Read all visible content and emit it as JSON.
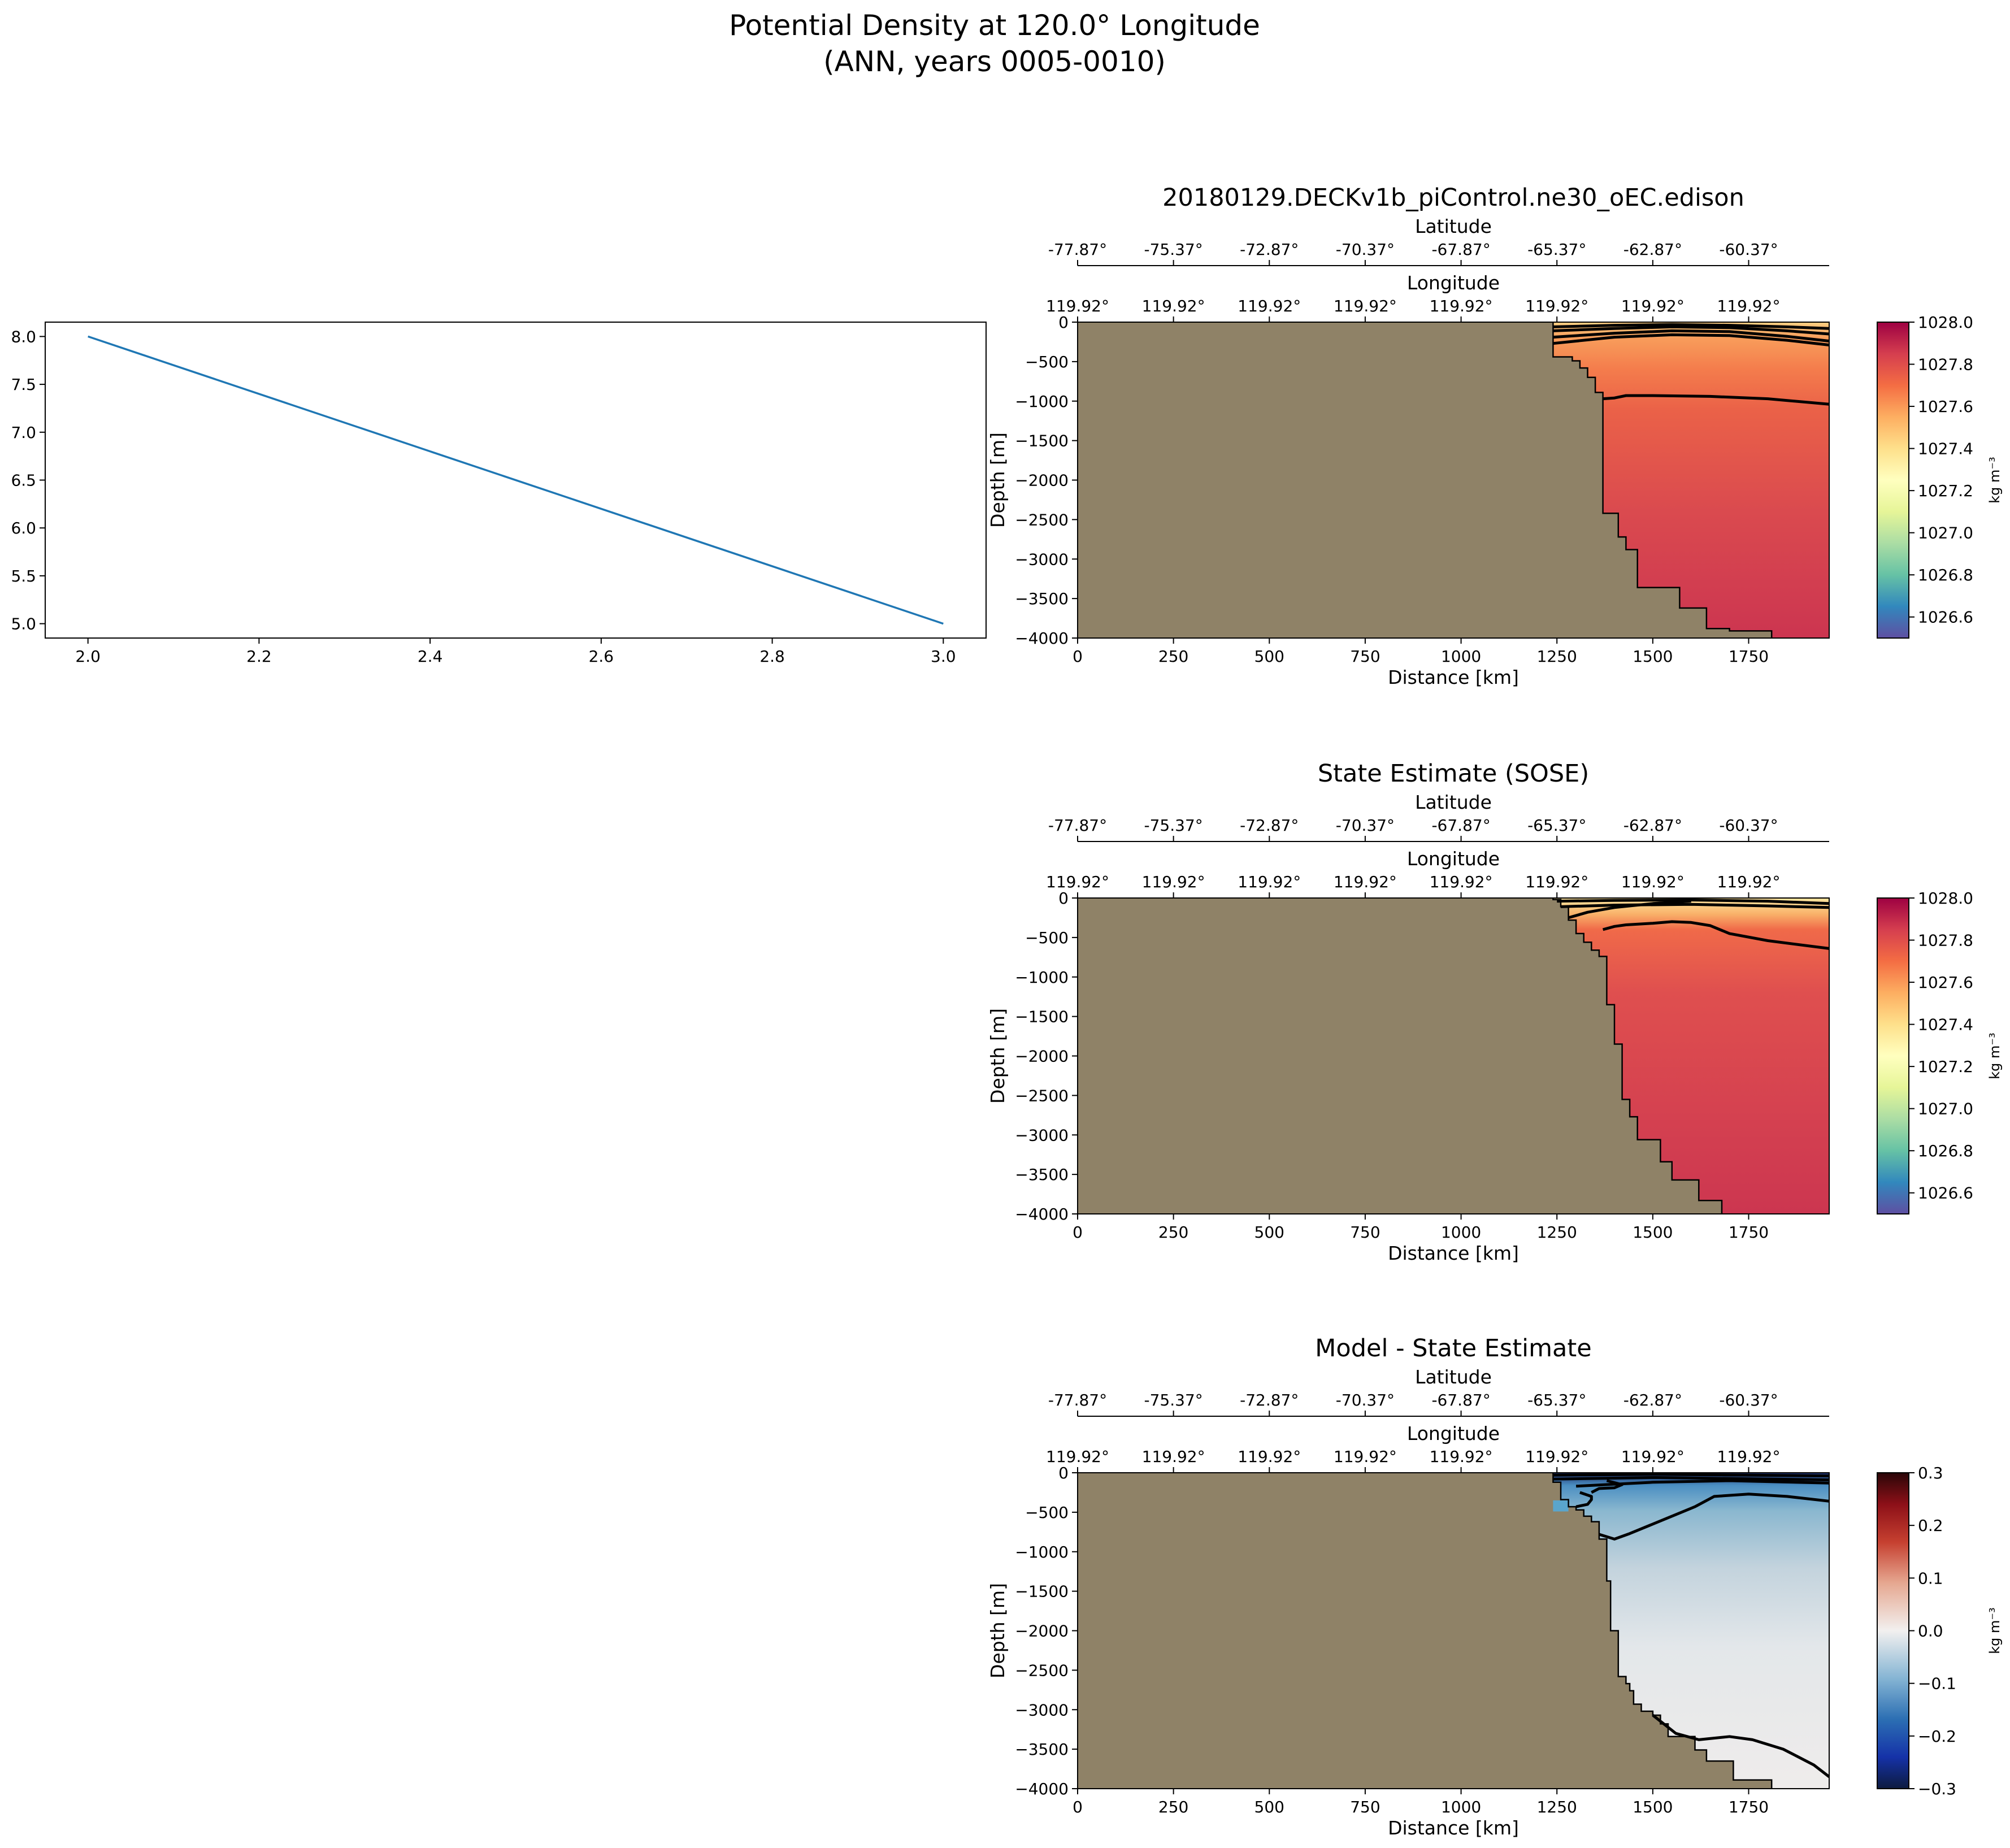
{
  "figure": {
    "title_line1": "Potential Density at 120.0° Longitude",
    "title_line2": "(ANN, years 0005-0010)"
  },
  "chart_data": [
    {
      "id": "line",
      "type": "line",
      "title": "",
      "xlabel": "",
      "ylabel": "",
      "xlim": [
        1.95,
        3.05
      ],
      "ylim": [
        4.85,
        8.15
      ],
      "xticks": [
        2.0,
        2.2,
        2.4,
        2.6,
        2.8,
        3.0
      ],
      "xtick_labels": [
        "2.0",
        "2.2",
        "2.4",
        "2.6",
        "2.8",
        "3.0"
      ],
      "yticks": [
        5.0,
        5.5,
        6.0,
        6.5,
        7.0,
        7.5,
        8.0
      ],
      "ytick_labels": [
        "5.0",
        "5.5",
        "6.0",
        "6.5",
        "7.0",
        "7.5",
        "8.0"
      ],
      "series": [
        {
          "x": [
            2.0,
            3.0
          ],
          "y": [
            8.0,
            5.0
          ],
          "color": "#1f77b4"
        }
      ],
      "grid": false
    },
    {
      "id": "model",
      "type": "heatmap",
      "title": "20180129.DECKv1b_piControl.ne30_oEC.edison",
      "xlabel": "Distance [km]",
      "ylabel": "Depth [m]",
      "top_axis1_label": "Longitude",
      "top_axis2_label": "Latitude",
      "xlim": [
        0,
        1960
      ],
      "ylim": [
        -4000,
        0
      ],
      "xticks": [
        0,
        250,
        500,
        750,
        1000,
        1250,
        1500,
        1750
      ],
      "xtick_labels": [
        "0",
        "250",
        "500",
        "750",
        "1000",
        "1250",
        "1500",
        "1750"
      ],
      "yticks": [
        0,
        -500,
        -1000,
        -1500,
        -2000,
        -2500,
        -3000,
        -3500,
        -4000
      ],
      "ytick_labels": [
        "0",
        "−500",
        "−1000",
        "−1500",
        "−2000",
        "−2500",
        "−3000",
        "−3500",
        "−4000"
      ],
      "lon_tick_labels": [
        "119.92°",
        "119.92°",
        "119.92°",
        "119.92°",
        "119.92°",
        "119.92°",
        "119.92°",
        "119.92°"
      ],
      "lat_tick_labels": [
        "-77.87°",
        "-75.37°",
        "-72.87°",
        "-70.37°",
        "-67.87°",
        "-65.37°",
        "-62.87°",
        "-60.37°"
      ],
      "colorbar": {
        "label": "kg m⁻³",
        "range": [
          1026.5,
          1028.0
        ],
        "ticks": [
          1026.6,
          1026.8,
          1027.0,
          1027.2,
          1027.4,
          1027.6,
          1027.8,
          1028.0
        ],
        "tick_labels": [
          "1026.6",
          "1026.8",
          "1027.0",
          "1027.2",
          "1027.4",
          "1027.6",
          "1027.8",
          "1028.0"
        ],
        "colormap": "Spectral_r"
      },
      "land_color": "#8f8267",
      "bathymetry": [
        [
          1240,
          -440
        ],
        [
          1290,
          -440
        ],
        [
          1290,
          -490
        ],
        [
          1310,
          -490
        ],
        [
          1310,
          -580
        ],
        [
          1330,
          -580
        ],
        [
          1330,
          -700
        ],
        [
          1350,
          -700
        ],
        [
          1350,
          -890
        ],
        [
          1370,
          -890
        ],
        [
          1370,
          -2420
        ],
        [
          1410,
          -2420
        ],
        [
          1410,
          -2720
        ],
        [
          1430,
          -2720
        ],
        [
          1430,
          -2880
        ],
        [
          1460,
          -2880
        ],
        [
          1460,
          -3360
        ],
        [
          1570,
          -3360
        ],
        [
          1570,
          -3620
        ],
        [
          1640,
          -3620
        ],
        [
          1640,
          -3880
        ],
        [
          1700,
          -3880
        ],
        [
          1700,
          -3910
        ],
        [
          1810,
          -3910
        ],
        [
          1810,
          -4000
        ]
      ],
      "shelf_top": [
        [
          1240,
          -440
        ],
        [
          1240,
          -80
        ]
      ],
      "density_field": {
        "surface_min": 1027.3,
        "mid": 1027.7,
        "bottom": 1027.88
      },
      "contours": [
        [
          [
            1240,
            -60
          ],
          [
            1400,
            -40
          ],
          [
            1550,
            -30
          ],
          [
            1700,
            -40
          ],
          [
            1850,
            -60
          ],
          [
            1960,
            -80
          ]
        ],
        [
          [
            1240,
            -110
          ],
          [
            1400,
            -80
          ],
          [
            1550,
            -60
          ],
          [
            1700,
            -70
          ],
          [
            1850,
            -110
          ],
          [
            1960,
            -150
          ]
        ],
        [
          [
            1240,
            -190
          ],
          [
            1400,
            -140
          ],
          [
            1550,
            -110
          ],
          [
            1700,
            -120
          ],
          [
            1850,
            -180
          ],
          [
            1960,
            -240
          ]
        ],
        [
          [
            1240,
            -270
          ],
          [
            1400,
            -190
          ],
          [
            1550,
            -160
          ],
          [
            1700,
            -170
          ],
          [
            1850,
            -230
          ],
          [
            1960,
            -290
          ]
        ],
        [
          [
            1370,
            -970
          ],
          [
            1400,
            -960
          ],
          [
            1430,
            -930
          ],
          [
            1500,
            -930
          ],
          [
            1650,
            -940
          ],
          [
            1800,
            -970
          ],
          [
            1960,
            -1040
          ]
        ]
      ]
    },
    {
      "id": "sose",
      "type": "heatmap",
      "title": "State Estimate (SOSE)",
      "xlabel": "Distance [km]",
      "ylabel": "Depth [m]",
      "top_axis1_label": "Longitude",
      "top_axis2_label": "Latitude",
      "xlim": [
        0,
        1960
      ],
      "ylim": [
        -4000,
        0
      ],
      "xticks": [
        0,
        250,
        500,
        750,
        1000,
        1250,
        1500,
        1750
      ],
      "xtick_labels": [
        "0",
        "250",
        "500",
        "750",
        "1000",
        "1250",
        "1500",
        "1750"
      ],
      "yticks": [
        0,
        -500,
        -1000,
        -1500,
        -2000,
        -2500,
        -3000,
        -3500,
        -4000
      ],
      "ytick_labels": [
        "0",
        "−500",
        "−1000",
        "−1500",
        "−2000",
        "−2500",
        "−3000",
        "−3500",
        "−4000"
      ],
      "lon_tick_labels": [
        "119.92°",
        "119.92°",
        "119.92°",
        "119.92°",
        "119.92°",
        "119.92°",
        "119.92°",
        "119.92°"
      ],
      "lat_tick_labels": [
        "-77.87°",
        "-75.37°",
        "-72.87°",
        "-70.37°",
        "-67.87°",
        "-65.37°",
        "-62.87°",
        "-60.37°"
      ],
      "colorbar": {
        "label": "kg m⁻³",
        "range": [
          1026.5,
          1028.0
        ],
        "ticks": [
          1026.6,
          1026.8,
          1027.0,
          1027.2,
          1027.4,
          1027.6,
          1027.8,
          1028.0
        ],
        "tick_labels": [
          "1026.6",
          "1026.8",
          "1027.0",
          "1027.2",
          "1027.4",
          "1027.6",
          "1027.8",
          "1028.0"
        ],
        "colormap": "Spectral_r"
      },
      "land_color": "#8f8267",
      "bathymetry": [
        [
          1240,
          -20
        ],
        [
          1260,
          -20
        ],
        [
          1260,
          -110
        ],
        [
          1280,
          -110
        ],
        [
          1280,
          -280
        ],
        [
          1300,
          -280
        ],
        [
          1300,
          -450
        ],
        [
          1320,
          -450
        ],
        [
          1320,
          -560
        ],
        [
          1340,
          -560
        ],
        [
          1340,
          -660
        ],
        [
          1360,
          -660
        ],
        [
          1360,
          -740
        ],
        [
          1380,
          -740
        ],
        [
          1380,
          -1350
        ],
        [
          1400,
          -1350
        ],
        [
          1400,
          -1850
        ],
        [
          1420,
          -1850
        ],
        [
          1420,
          -2550
        ],
        [
          1440,
          -2550
        ],
        [
          1440,
          -2770
        ],
        [
          1460,
          -2770
        ],
        [
          1460,
          -3060
        ],
        [
          1520,
          -3060
        ],
        [
          1520,
          -3340
        ],
        [
          1550,
          -3340
        ],
        [
          1550,
          -3570
        ],
        [
          1620,
          -3570
        ],
        [
          1620,
          -3830
        ],
        [
          1680,
          -3830
        ],
        [
          1680,
          -4000
        ]
      ],
      "density_field": {
        "surface_min": 1027.15,
        "mid": 1027.75,
        "bottom": 1027.87
      },
      "contours": [
        [
          [
            1250,
            -40
          ],
          [
            1400,
            -30
          ],
          [
            1600,
            -25
          ],
          [
            1800,
            -40
          ],
          [
            1960,
            -70
          ]
        ],
        [
          [
            1260,
            -110
          ],
          [
            1400,
            -90
          ],
          [
            1600,
            -80
          ],
          [
            1800,
            -100
          ],
          [
            1960,
            -120
          ]
        ],
        [
          [
            1280,
            -250
          ],
          [
            1330,
            -180
          ],
          [
            1400,
            -120
          ],
          [
            1500,
            -70
          ],
          [
            1600,
            -40
          ]
        ],
        [
          [
            1370,
            -400
          ],
          [
            1400,
            -360
          ],
          [
            1430,
            -340
          ],
          [
            1500,
            -320
          ],
          [
            1550,
            -300
          ],
          [
            1600,
            -310
          ],
          [
            1650,
            -350
          ],
          [
            1700,
            -450
          ],
          [
            1800,
            -540
          ],
          [
            1960,
            -640
          ]
        ]
      ]
    },
    {
      "id": "diff",
      "type": "heatmap",
      "title": "Model - State Estimate",
      "xlabel": "Distance [km]",
      "ylabel": "Depth [m]",
      "top_axis1_label": "Longitude",
      "top_axis2_label": "Latitude",
      "xlim": [
        0,
        1960
      ],
      "ylim": [
        -4000,
        0
      ],
      "xticks": [
        0,
        250,
        500,
        750,
        1000,
        1250,
        1500,
        1750
      ],
      "xtick_labels": [
        "0",
        "250",
        "500",
        "750",
        "1000",
        "1250",
        "1500",
        "1750"
      ],
      "yticks": [
        0,
        -500,
        -1000,
        -1500,
        -2000,
        -2500,
        -3000,
        -3500,
        -4000
      ],
      "ytick_labels": [
        "0",
        "−500",
        "−1000",
        "−1500",
        "−2000",
        "−2500",
        "−3000",
        "−3500",
        "−4000"
      ],
      "lon_tick_labels": [
        "119.92°",
        "119.92°",
        "119.92°",
        "119.92°",
        "119.92°",
        "119.92°",
        "119.92°",
        "119.92°"
      ],
      "lat_tick_labels": [
        "-77.87°",
        "-75.37°",
        "-72.87°",
        "-70.37°",
        "-67.87°",
        "-65.37°",
        "-62.87°",
        "-60.37°"
      ],
      "colorbar": {
        "label": "kg m⁻³",
        "range": [
          -0.3,
          0.3
        ],
        "ticks": [
          -0.3,
          -0.2,
          -0.1,
          0.0,
          0.1,
          0.2,
          0.3
        ],
        "tick_labels": [
          "−0.3",
          "−0.2",
          "−0.1",
          "0.0",
          "0.1",
          "0.2",
          "0.3"
        ],
        "colormap": "RdBu_r"
      },
      "land_color": "#8f8267",
      "bathymetry": [
        [
          1240,
          -120
        ],
        [
          1260,
          -120
        ],
        [
          1260,
          -340
        ],
        [
          1280,
          -340
        ],
        [
          1280,
          -430
        ],
        [
          1300,
          -430
        ],
        [
          1300,
          -470
        ],
        [
          1320,
          -470
        ],
        [
          1320,
          -550
        ],
        [
          1340,
          -550
        ],
        [
          1340,
          -620
        ],
        [
          1360,
          -620
        ],
        [
          1360,
          -840
        ],
        [
          1380,
          -840
        ],
        [
          1380,
          -1370
        ],
        [
          1390,
          -1370
        ],
        [
          1390,
          -2000
        ],
        [
          1410,
          -2000
        ],
        [
          1410,
          -2580
        ],
        [
          1430,
          -2580
        ],
        [
          1430,
          -2670
        ],
        [
          1440,
          -2670
        ],
        [
          1440,
          -2760
        ],
        [
          1450,
          -2760
        ],
        [
          1450,
          -2930
        ],
        [
          1470,
          -2930
        ],
        [
          1470,
          -3020
        ],
        [
          1500,
          -3020
        ],
        [
          1500,
          -3070
        ],
        [
          1520,
          -3070
        ],
        [
          1520,
          -3180
        ],
        [
          1540,
          -3180
        ],
        [
          1540,
          -3340
        ],
        [
          1610,
          -3340
        ],
        [
          1610,
          -3510
        ],
        [
          1640,
          -3510
        ],
        [
          1640,
          -3650
        ],
        [
          1710,
          -3650
        ],
        [
          1710,
          -3890
        ],
        [
          1810,
          -3890
        ],
        [
          1810,
          -4000
        ]
      ],
      "shelf_anomaly_box": [
        [
          1240,
          -490
        ],
        [
          1280,
          -490
        ],
        [
          1280,
          -350
        ],
        [
          1240,
          -350
        ]
      ],
      "contours": [
        [
          [
            1240,
            -30
          ],
          [
            1500,
            -20
          ],
          [
            1960,
            -40
          ]
        ],
        [
          [
            1240,
            -80
          ],
          [
            1500,
            -60
          ],
          [
            1960,
            -90
          ]
        ],
        [
          [
            1300,
            -170
          ],
          [
            1500,
            -120
          ],
          [
            1700,
            -100
          ],
          [
            1960,
            -130
          ]
        ],
        [
          [
            1340,
            -250
          ],
          [
            1360,
            -200
          ],
          [
            1400,
            -190
          ],
          [
            1420,
            -150
          ],
          [
            1380,
            -100
          ]
        ],
        [
          [
            1300,
            -430
          ],
          [
            1330,
            -400
          ],
          [
            1340,
            -340
          ],
          [
            1340,
            -300
          ],
          [
            1310,
            -250
          ]
        ],
        [
          [
            1360,
            -780
          ],
          [
            1400,
            -840
          ],
          [
            1440,
            -770
          ],
          [
            1500,
            -650
          ],
          [
            1560,
            -530
          ],
          [
            1610,
            -430
          ],
          [
            1660,
            -300
          ],
          [
            1750,
            -270
          ],
          [
            1850,
            -300
          ],
          [
            1960,
            -360
          ]
        ],
        [
          [
            1500,
            -3070
          ],
          [
            1560,
            -3300
          ],
          [
            1620,
            -3380
          ],
          [
            1700,
            -3340
          ],
          [
            1760,
            -3380
          ],
          [
            1840,
            -3500
          ],
          [
            1920,
            -3700
          ],
          [
            1960,
            -3850
          ]
        ]
      ]
    }
  ]
}
